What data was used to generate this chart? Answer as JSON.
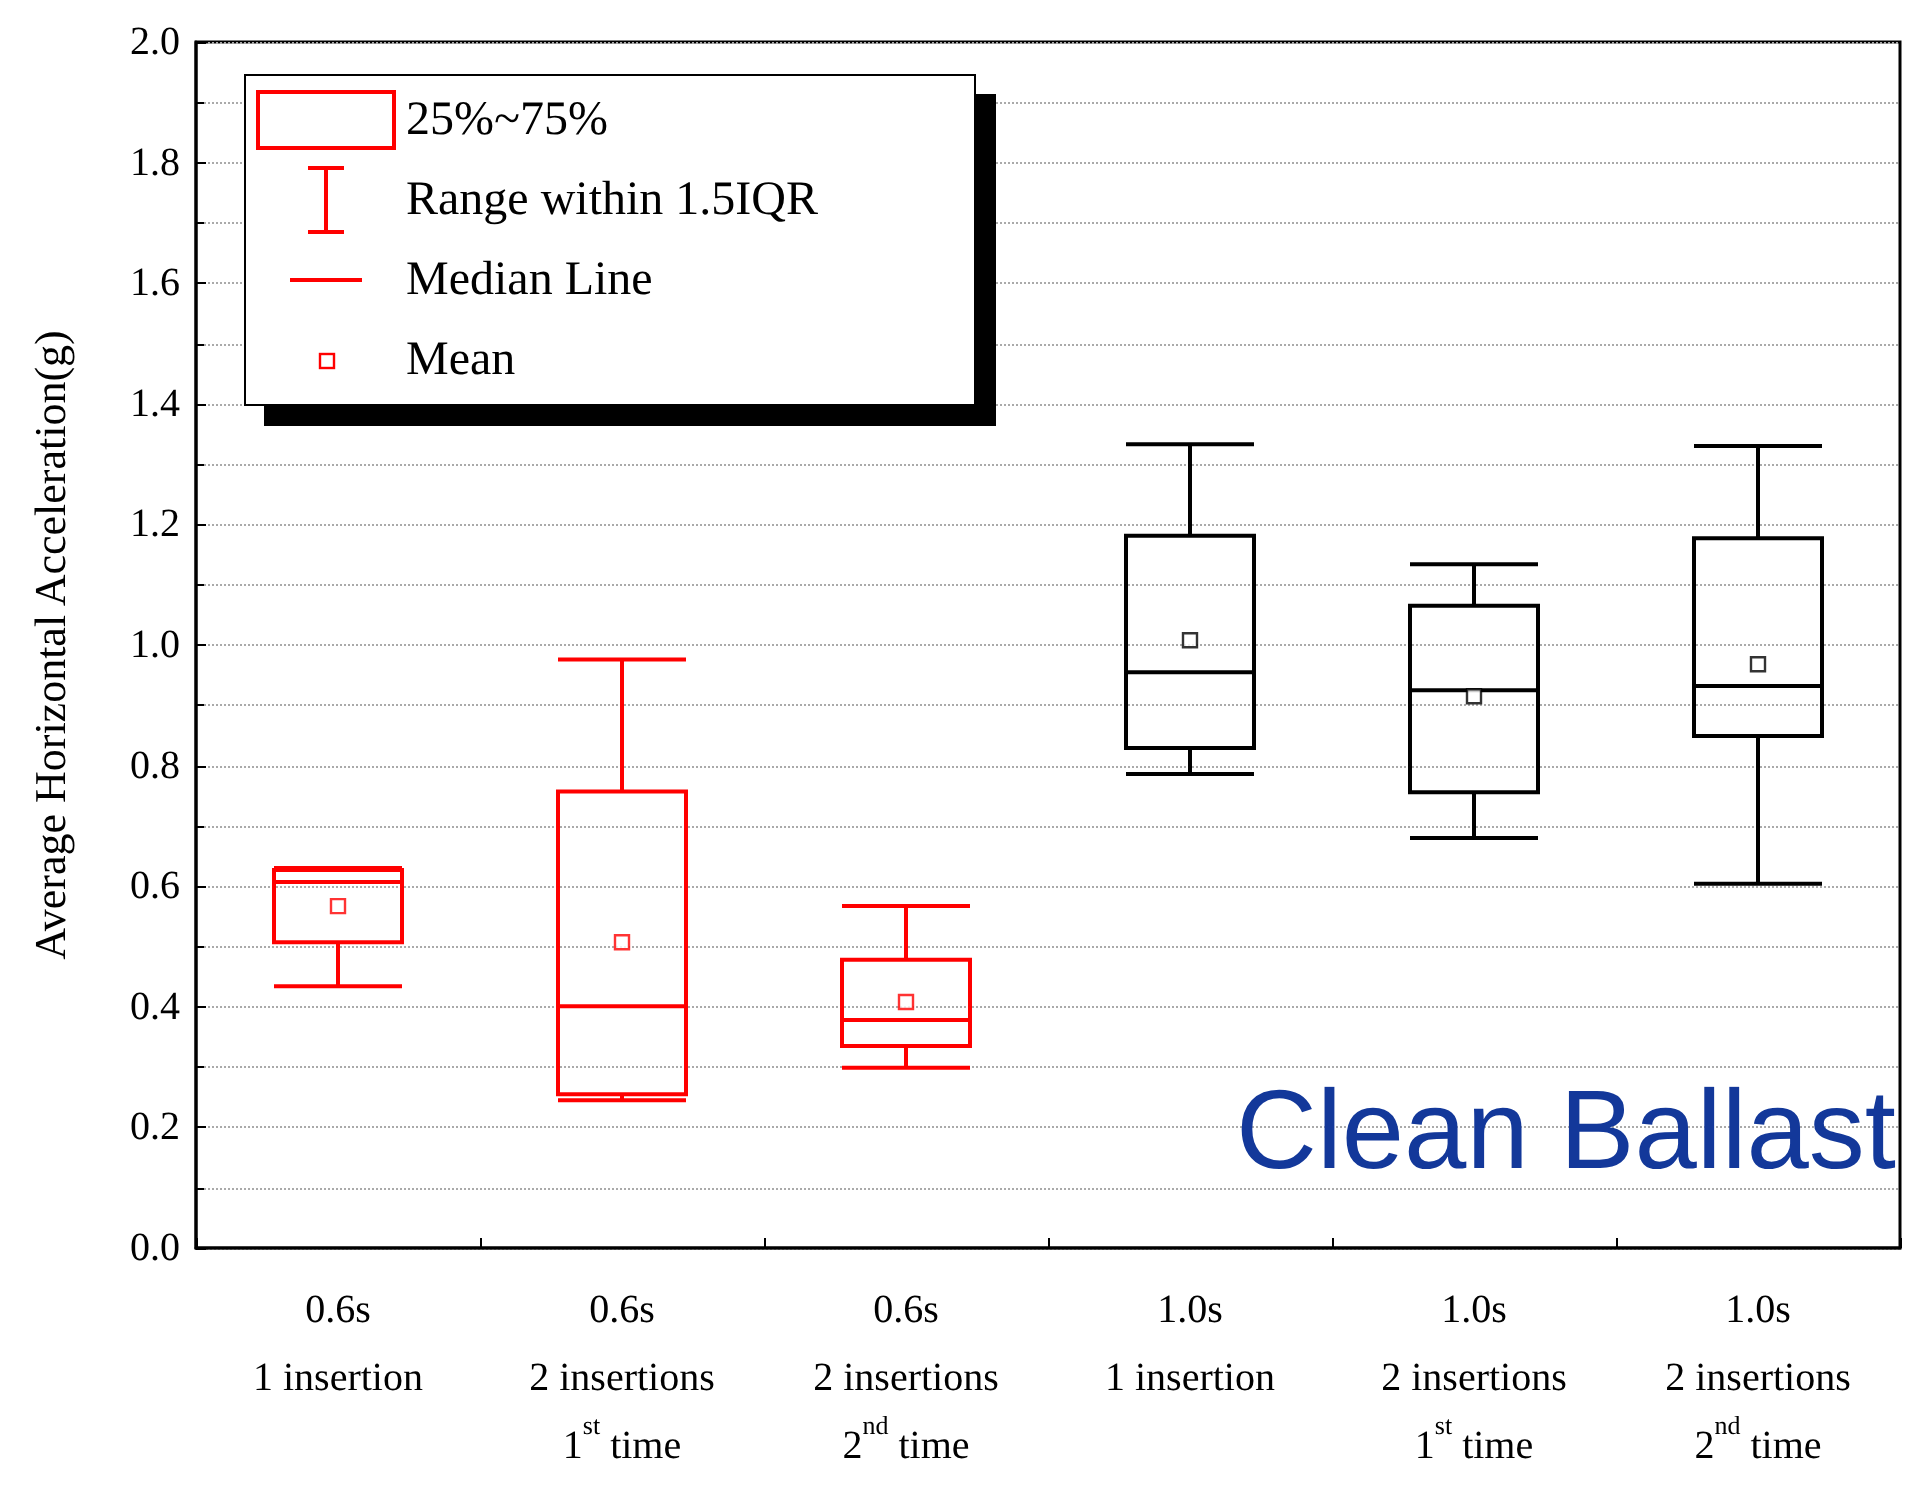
{
  "chart_data": {
    "type": "box",
    "ylabel": "Average Horizontal Acceleration(g)",
    "categories": [
      "0.6s\n1 insertion",
      "0.6s\n2 insertions\n1$^{st}$ time",
      "0.6s\n2 insertions\n2$^{nd}$ time",
      "1.0s\n1 insertion",
      "1.0s\n2 insertions\n1$^{st}$ time",
      "1.0s\n2 insertions\n2$^{nd}$ time"
    ],
    "series": [
      {
        "type": "box",
        "name": "25%~75%",
        "colors": [
          "#ff0000",
          "#ff0000",
          "#ff0000",
          "#000000",
          "#000000",
          "#000000"
        ],
        "boxes": [
          {
            "low": 0.434,
            "q1": 0.507,
            "median": 0.607,
            "q3": 0.627,
            "high": 0.63
          },
          {
            "low": 0.245,
            "q1": 0.255,
            "median": 0.401,
            "q3": 0.757,
            "high": 0.976
          },
          {
            "low": 0.299,
            "q1": 0.335,
            "median": 0.378,
            "q3": 0.478,
            "high": 0.567
          },
          {
            "low": 0.786,
            "q1": 0.829,
            "median": 0.955,
            "q3": 1.181,
            "high": 1.333
          },
          {
            "low": 0.68,
            "q1": 0.756,
            "median": 0.925,
            "q3": 1.065,
            "high": 1.134
          },
          {
            "low": 0.604,
            "q1": 0.849,
            "median": 0.932,
            "q3": 1.177,
            "high": 1.33
          }
        ]
      },
      {
        "type": "scatter",
        "name": "Mean",
        "marker": "square",
        "x": [
          "0.6s\n1 insertion",
          "0.6s\n2 insertions\n1$^{st}$ time",
          "0.6s\n2 insertions\n2$^{nd}$ time",
          "1.0s\n1 insertion",
          "1.0s\n2 insertions\n1$^{st}$ time",
          "1.0s\n2 insertions\n2$^{nd}$ time"
        ],
        "values": [
          0.567,
          0.507,
          0.408,
          1.008,
          0.915,
          0.968
        ],
        "colors": [
          "#ff0000",
          "#ff0000",
          "#ff0000",
          "#000000",
          "#000000",
          "#000000"
        ]
      }
    ],
    "ylim": [
      0,
      2
    ],
    "yticks": [
      {
        "value": 0,
        "label": "0.0"
      },
      {
        "value": 0.2,
        "label": "0.2"
      },
      {
        "value": 0.4,
        "label": "0.4"
      },
      {
        "value": 0.6,
        "label": "0.6"
      },
      {
        "value": 0.8,
        "label": "0.8"
      },
      {
        "value": 1,
        "label": "1.0"
      },
      {
        "value": 1.2,
        "label": "1.2"
      },
      {
        "value": 1.4,
        "label": "1.4"
      },
      {
        "value": 1.6,
        "label": "1.6"
      },
      {
        "value": 1.8,
        "label": "1.8"
      },
      {
        "value": 2,
        "label": "2.0"
      }
    ],
    "grid": "y",
    "legend": "top left",
    "annotations": [
      "Range within 1.5IQR",
      "Median Line",
      {
        "text": "Clean Ballast"
      }
    ]
  }
}
